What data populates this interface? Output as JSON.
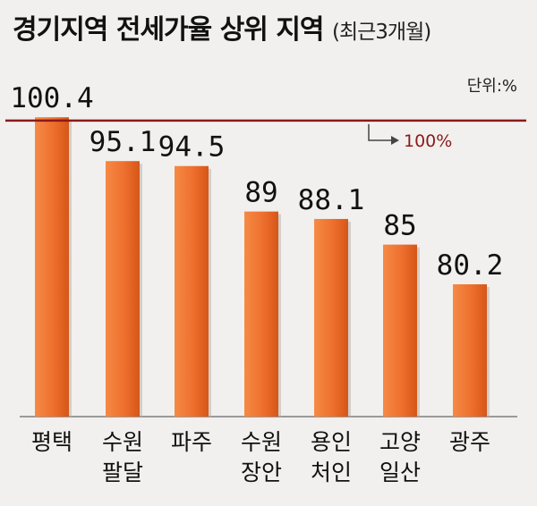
{
  "title": "경기지역 전세가율 상위 지역",
  "subtitle": "(최근3개월)",
  "unit_label": "단위:%",
  "chart_data": {
    "type": "bar",
    "categories": [
      [
        "평택"
      ],
      [
        "수원",
        "팔달"
      ],
      [
        "파주"
      ],
      [
        "수원",
        "장안"
      ],
      [
        "용인",
        "처인"
      ],
      [
        "고양",
        "일산"
      ],
      [
        "광주"
      ]
    ],
    "values": [
      100.4,
      95.1,
      94.5,
      89,
      88.1,
      85,
      80.2
    ],
    "value_labels": [
      "100.4",
      "95.1",
      "94.5",
      "89",
      "88.1",
      "85",
      "80.2"
    ],
    "reference_line": {
      "value": 100,
      "label": "100%",
      "color": "#8b1a1a"
    },
    "bar_color": "#ee6f2d",
    "ylim": [
      64.2,
      101.5
    ]
  }
}
